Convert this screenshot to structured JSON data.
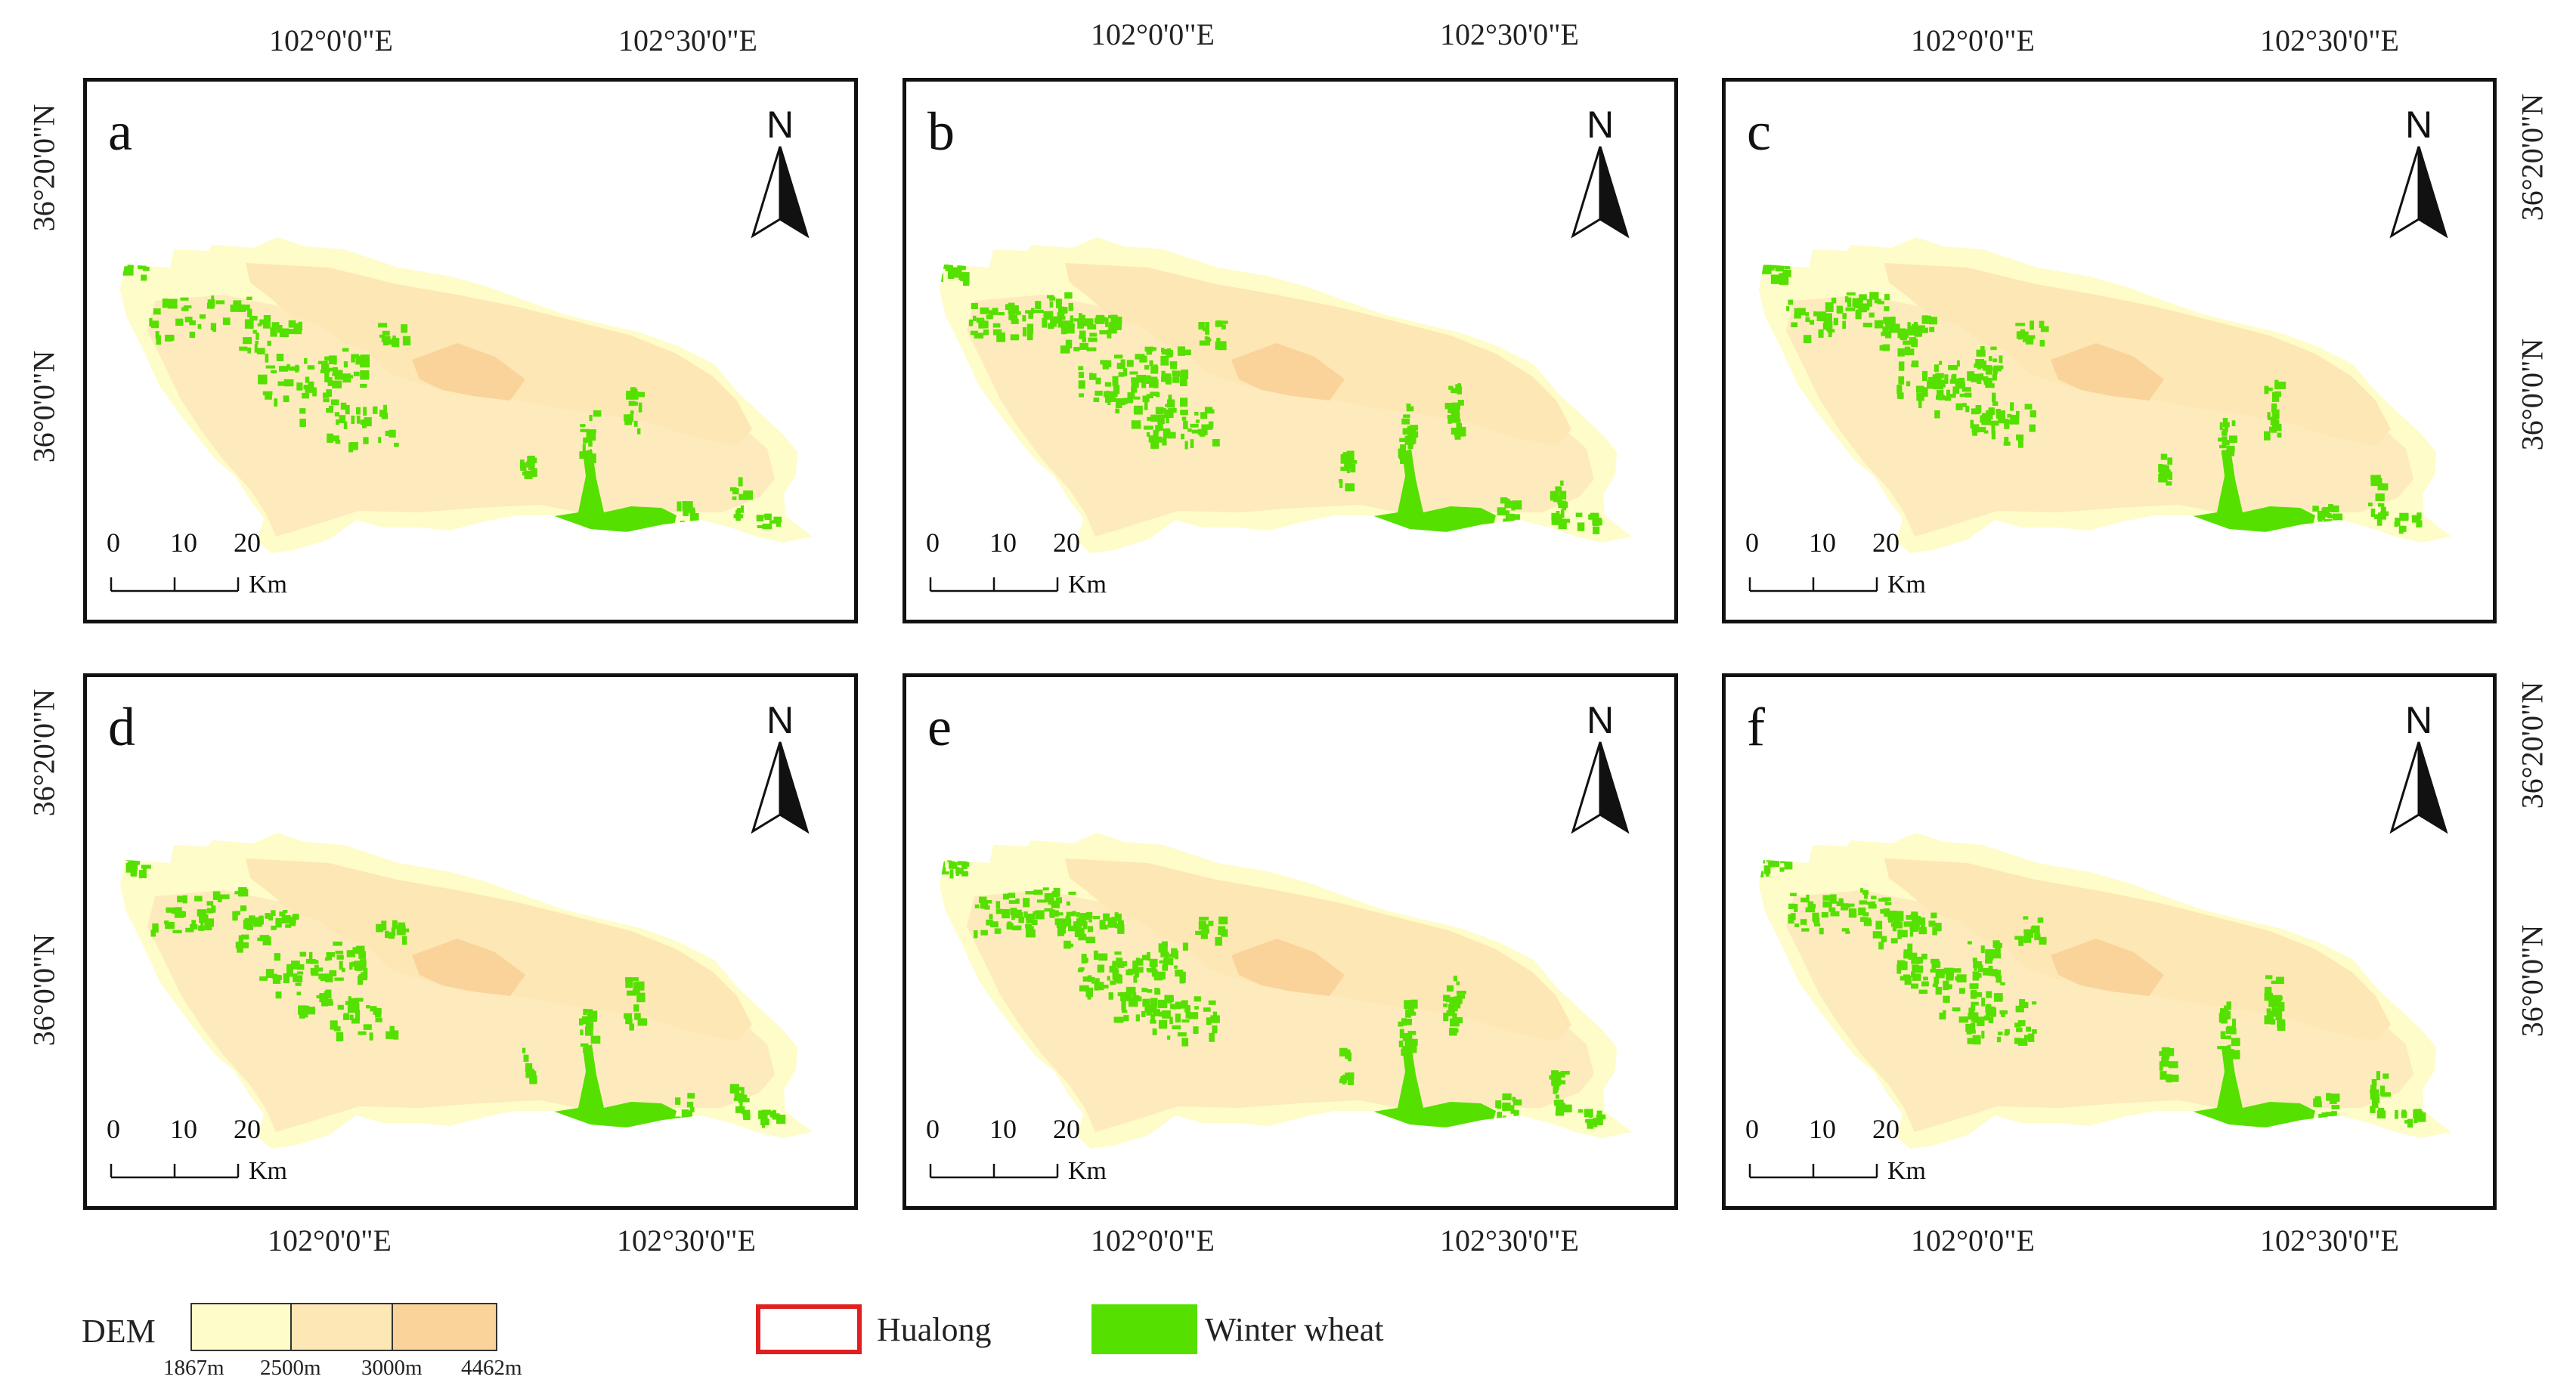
{
  "coord_labels": {
    "lon_1": "102°0'0\"E",
    "lon_2": "102°30'0\"E",
    "lat_1": "36°20'0\"N",
    "lat_2": "36°0'0\"N"
  },
  "panels": [
    {
      "letter": "a",
      "density": 0.65
    },
    {
      "letter": "b",
      "density": 1.0
    },
    {
      "letter": "c",
      "density": 0.85
    },
    {
      "letter": "d",
      "density": 0.7
    },
    {
      "letter": "e",
      "density": 1.0
    },
    {
      "letter": "f",
      "density": 0.9
    }
  ],
  "north_label": "N",
  "scale_bar": {
    "ticks": [
      "0",
      "10",
      "20"
    ],
    "unit": "Km"
  },
  "legend": {
    "dem_title": "DEM",
    "dem_breaks": [
      "1867m",
      "2500m",
      "3000m",
      "4462m"
    ],
    "dem_colors": [
      "#fefcc8",
      "#fde7b5",
      "#fad39a"
    ],
    "hualong_label": "Hualong",
    "hualong_color": "#e02020",
    "wheat_label": "Winter wheat",
    "wheat_color": "#55e000"
  }
}
